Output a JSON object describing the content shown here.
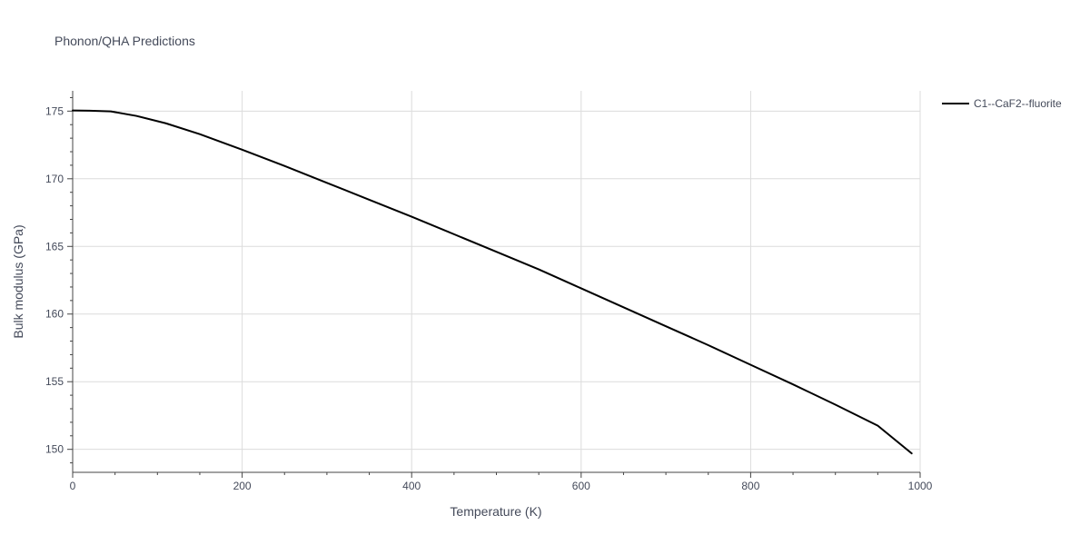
{
  "chart_data": {
    "type": "line",
    "title": "Phonon/QHA Predictions",
    "xlabel": "Temperature (K)",
    "ylabel": "Bulk modulus (GPa)",
    "xlim": [
      0,
      1000
    ],
    "ylim": [
      148.3,
      176.5
    ],
    "x_ticks": [
      0,
      200,
      400,
      600,
      800,
      1000
    ],
    "y_ticks": [
      150,
      155,
      160,
      165,
      170,
      175
    ],
    "x_minor_step": 50,
    "y_minor_step": 1,
    "grid": true,
    "legend_position": "top-right",
    "series": [
      {
        "name": "C1--CaF2--fluorite",
        "color": "#000000",
        "x": [
          0,
          20,
          45,
          75,
          110,
          150,
          200,
          250,
          300,
          350,
          400,
          450,
          500,
          550,
          600,
          650,
          700,
          750,
          800,
          850,
          900,
          950,
          990
        ],
        "y": [
          175.05,
          175.03,
          174.98,
          174.65,
          174.1,
          173.3,
          172.15,
          170.95,
          169.7,
          168.45,
          167.2,
          165.9,
          164.6,
          163.3,
          161.9,
          160.5,
          159.1,
          157.7,
          156.25,
          154.8,
          153.3,
          151.75,
          149.7
        ]
      }
    ]
  }
}
